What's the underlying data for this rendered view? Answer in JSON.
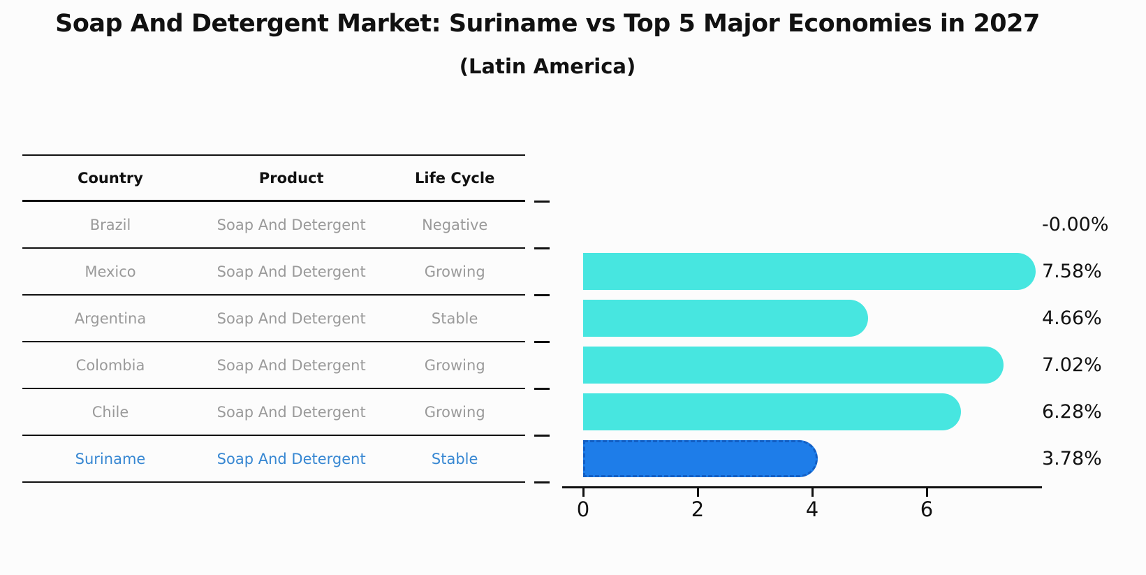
{
  "title": "Soap And Detergent Market: Suriname vs Top 5 Major Economies in 2027",
  "subtitle": "(Latin America)",
  "table": {
    "headers": [
      "Country",
      "Product",
      "Life Cycle"
    ],
    "rows": [
      {
        "country": "Brazil",
        "product": "Soap And Detergent",
        "life_cycle": "Negative",
        "highlight": false
      },
      {
        "country": "Mexico",
        "product": "Soap And Detergent",
        "life_cycle": "Growing",
        "highlight": false
      },
      {
        "country": "Argentina",
        "product": "Soap And Detergent",
        "life_cycle": "Stable",
        "highlight": false
      },
      {
        "country": "Colombia",
        "product": "Soap And Detergent",
        "life_cycle": "Growing",
        "highlight": false
      },
      {
        "country": "Chile",
        "product": "Soap And Detergent",
        "life_cycle": "Growing",
        "highlight": false
      },
      {
        "country": "Suriname",
        "product": "Soap And Detergent",
        "life_cycle": "Stable",
        "highlight": true
      }
    ]
  },
  "chart_data": {
    "type": "bar",
    "orientation": "horizontal",
    "title": "Soap And Detergent Market: Suriname vs Top 5 Major Economies in 2027",
    "subtitle": "(Latin America)",
    "categories": [
      "Brazil",
      "Mexico",
      "Argentina",
      "Colombia",
      "Chile",
      "Suriname"
    ],
    "values": [
      -0.0,
      7.58,
      4.66,
      7.02,
      6.28,
      3.78
    ],
    "value_labels": [
      "-0.00%",
      "7.58%",
      "4.66%",
      "7.02%",
      "6.28%",
      "3.78%"
    ],
    "highlight_index": 5,
    "xlim": [
      0,
      8
    ],
    "x_ticks": [
      0,
      2,
      4,
      6
    ],
    "grid": false,
    "legend": false,
    "ylabel": "",
    "xlabel": ""
  },
  "colors": {
    "bar": "#47E6E0",
    "highlight_bar": "#1E7DE9",
    "highlight_border": "#135FC4",
    "highlight_text": "#3787D2",
    "row_text": "#9A9A9A",
    "header_text": "#111111",
    "axis": "#111111",
    "value_label": "#111111",
    "background": "#FCFCFC"
  }
}
